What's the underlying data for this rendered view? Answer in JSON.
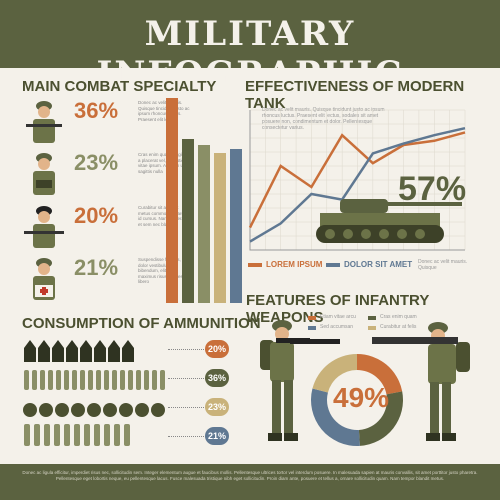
{
  "header": {
    "title": "MILITARY INFOGRAPHIC"
  },
  "combat": {
    "title": "MAIN COMBAT SPECIALTY",
    "rows": [
      {
        "pct": "36%",
        "text": "Donec ac velit mauris. Quisque tincidunt justo ac ipsum rhoncus luctus. Praesent elit lectus"
      },
      {
        "pct": "23%",
        "text": "Cras enim quam, sagittis a placerat vel, molestie vitae ipsum. Aliquam ut sagittis nulla"
      },
      {
        "pct": "20%",
        "text": "Curabitur sit amet ut metus commodo pharetra id cursus. Nam placerat et sem nec blandit"
      },
      {
        "pct": "21%",
        "text": "Suspendisse facilisis, dolor vestibulum bibendum, elit nibh maximus risus, a egestas libero"
      }
    ]
  },
  "tank": {
    "title": "EFFECTIVENESS OF MODERN TANK",
    "text": "Donec ac velit mauris. Quisque tincidunt justo ac ipsum rhoncus luctus. Praesent elit lectus, sodales sit amet posuere non, condimentum et dolor. Pellentesque consectetur varius.",
    "pct": "57%",
    "legend1": "LOREM IPSUM",
    "legend2": "DOLOR SIT AMET",
    "side_text": "Donec ac velit mauris. Quisque"
  },
  "ammo": {
    "title": "CONSUMPTION OF AMMUNITION",
    "badges": [
      "20%",
      "36%",
      "23%",
      "21%"
    ]
  },
  "infantry": {
    "title": "FEATURES OF INFANTRY WEAPONS",
    "legend": [
      "Etiam vitae arcu",
      "Cras enim quam",
      "Sed accumsan",
      "Curabitur at felis"
    ],
    "pct": "49%"
  },
  "footer": {
    "text": "Donec ac ligula efficitur, imperdiet risus nec, sollicitudin sem. Integer elementum augue et faucibus mollis. Pellentesque ultrices tortor vel interdum posuere. In malesuada sapien at mauris convallis, sit amet porttitor justo pharetra. Pellentesque eget lobortis neque, eu pellentesque lacus. Fusce malesuada tristique nibh eget sollicitudin. Proin diam ante, posuere et tellus a, ornare sollicitudin quam. Nam tempor blandit metus."
  },
  "colors": {
    "olive": "#5b6240",
    "orange": "#c96f3a",
    "sand": "#c9b27a",
    "blue": "#5f7892",
    "khaki": "#8a8f66"
  },
  "chart_data": [
    {
      "type": "bar",
      "title": "MAIN COMBAT SPECIALTY",
      "categories": [
        "1",
        "2",
        "3",
        "4",
        "5"
      ],
      "values": [
        100,
        80,
        77,
        73,
        75
      ],
      "colors": [
        "#c96f3a",
        "#5b6240",
        "#8a8f66",
        "#c9b27a",
        "#5f7892"
      ]
    },
    {
      "type": "line",
      "title": "EFFECTIVENESS OF MODERN TANK",
      "x": [
        0,
        1,
        2,
        3,
        4,
        5,
        6,
        7
      ],
      "ylim": [
        0,
        10
      ],
      "series": [
        {
          "name": "LOREM IPSUM",
          "values": [
            1.6,
            6.0,
            4.5,
            8.2,
            6.2,
            7.5,
            7.8,
            8.4
          ]
        },
        {
          "name": "DOLOR SIT AMET",
          "values": [
            0.6,
            1.9,
            4.0,
            3.6,
            6.9,
            7.6,
            8.2,
            8.7
          ]
        }
      ]
    },
    {
      "type": "pie",
      "title": "FEATURES OF INFANTRY WEAPONS",
      "labels": [
        "Etiam vitae arcu",
        "Cras enim quam",
        "Sed accumsan",
        "Curabitur at felis"
      ],
      "values": [
        22,
        27,
        30,
        21
      ],
      "colors": [
        "#c96f3a",
        "#5b6240",
        "#5f7892",
        "#c9b27a"
      ]
    }
  ]
}
